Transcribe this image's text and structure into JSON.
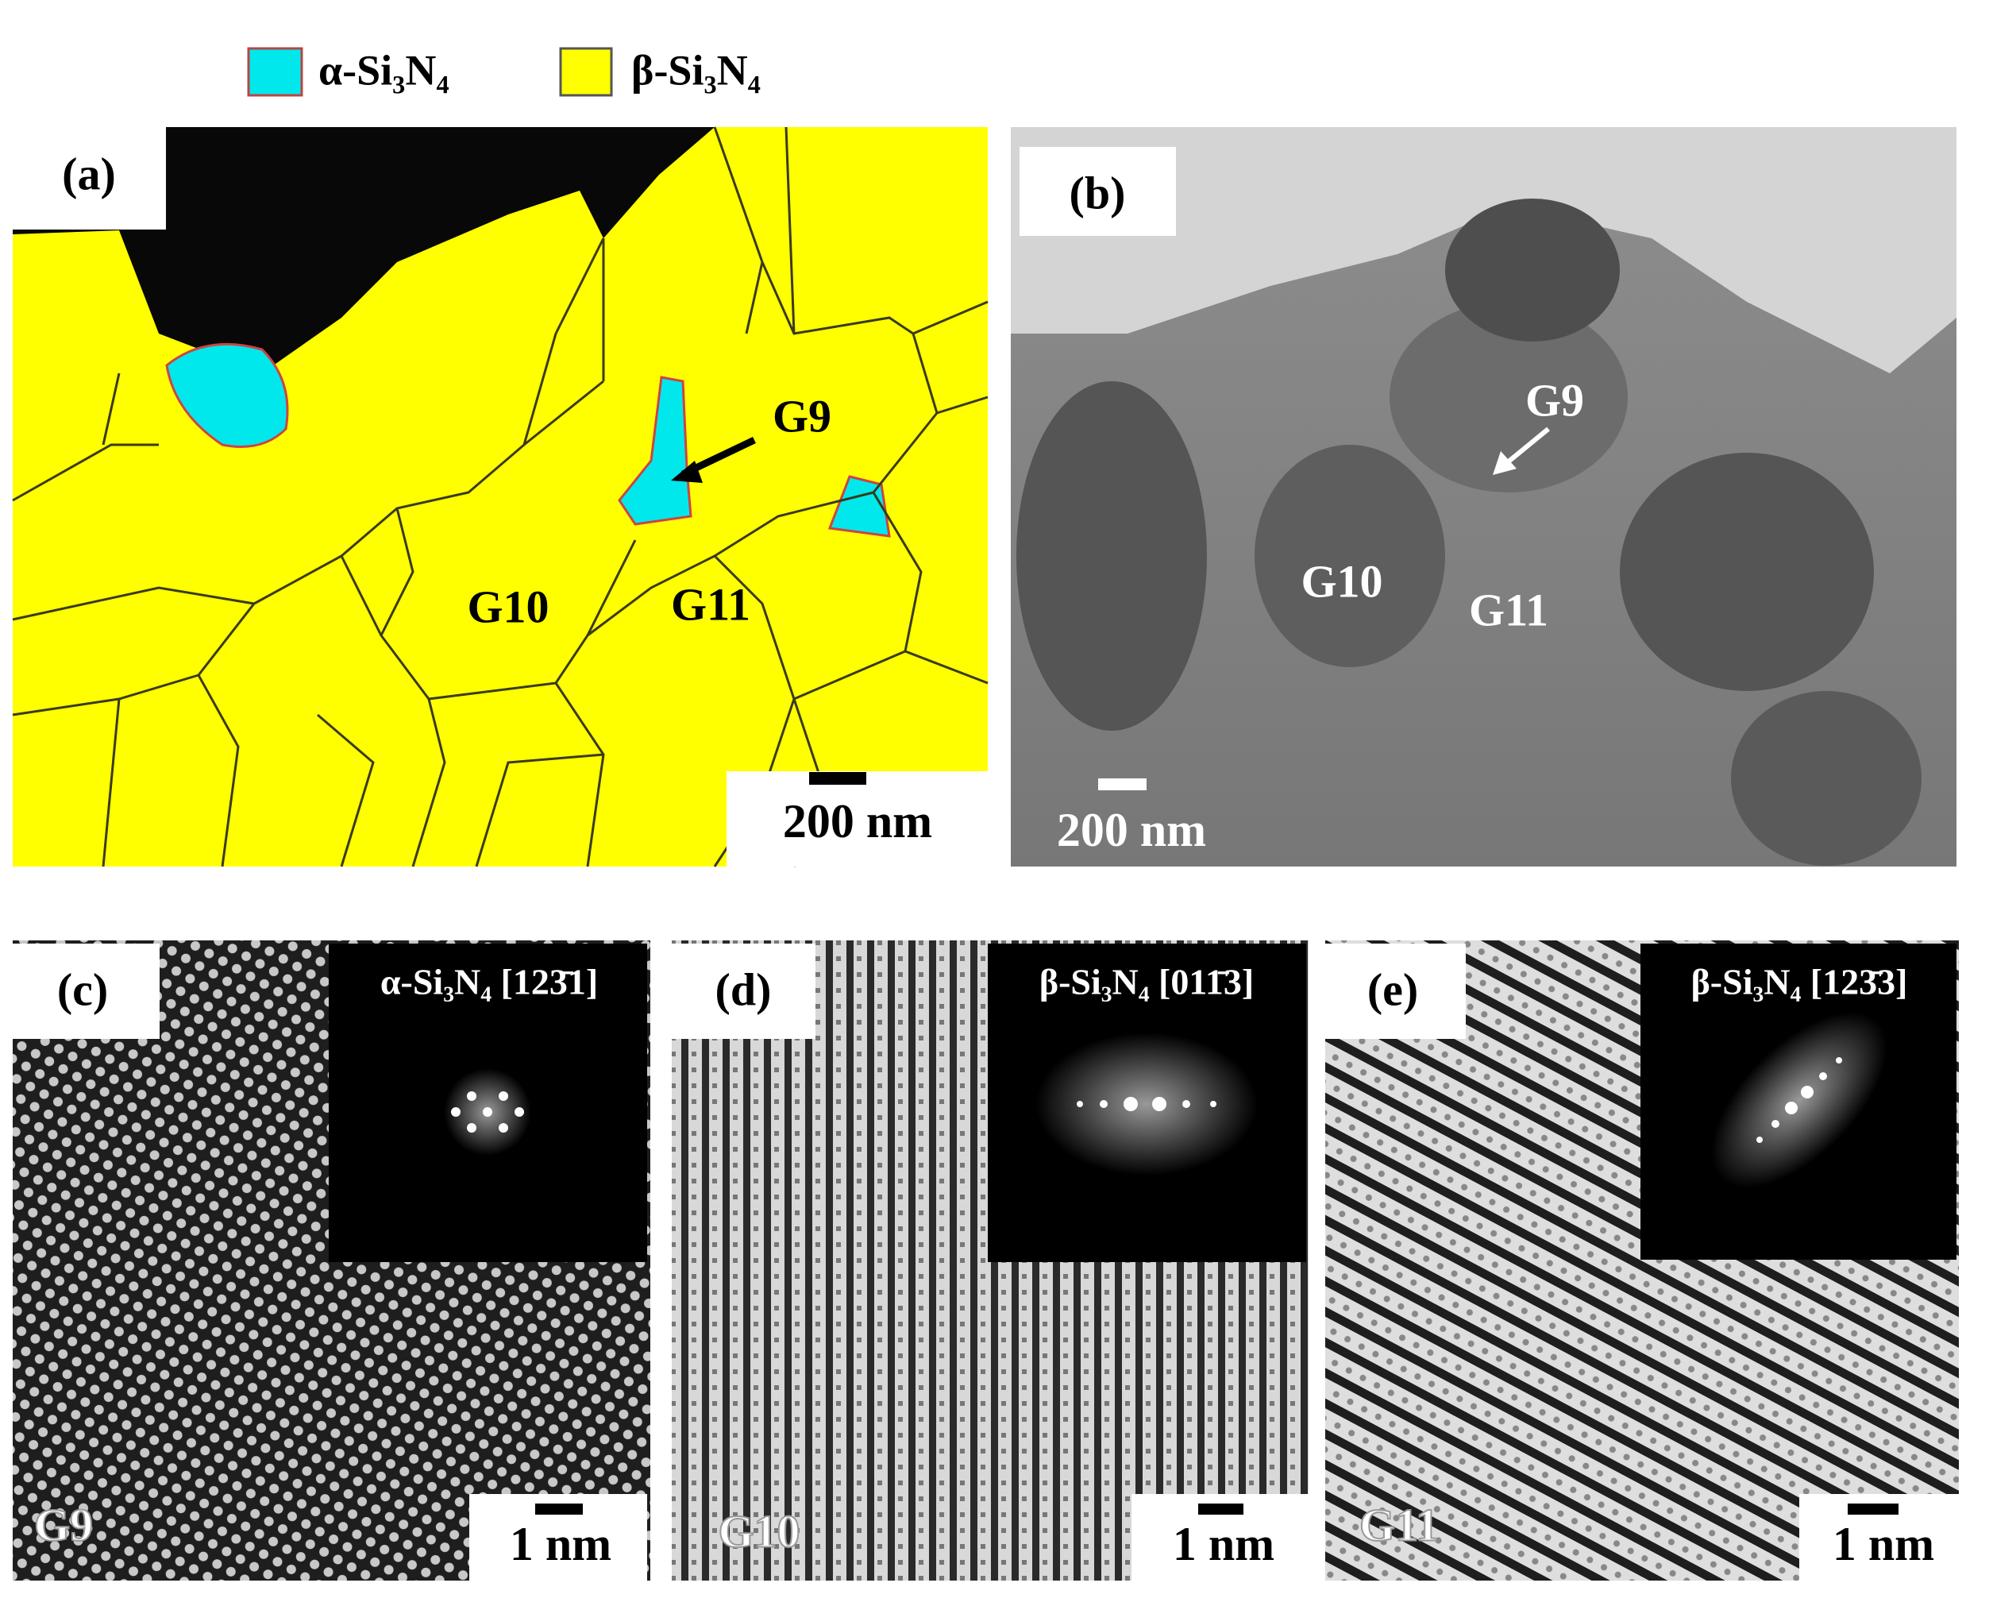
{
  "legend": [
    {
      "label": "α-Si₃N₄",
      "color": "#00e8ec"
    },
    {
      "label": "β-Si₃N₄",
      "color": "#ffff00"
    }
  ],
  "panels": [
    {
      "label": "(a)",
      "grains": [
        "G9",
        "G10",
        "G11"
      ],
      "scale_bar": "200 nm"
    },
    {
      "label": "(b)",
      "grains": [
        "G9",
        "G10",
        "G11"
      ],
      "scale_bar": "200 nm"
    },
    {
      "label": "(c)",
      "zone_axis": "α-Si₃N₄ [123̄1]",
      "grain": "G9",
      "scale_bar": "1 nm"
    },
    {
      "label": "(d)",
      "zone_axis": "β-Si₃N₄ [011̄3]",
      "grain": "G10",
      "scale_bar": "1 nm"
    },
    {
      "label": "(e)",
      "zone_axis": "β-Si₃N₄ [123̄3]",
      "grain": "G11",
      "scale_bar": "1 nm"
    }
  ]
}
